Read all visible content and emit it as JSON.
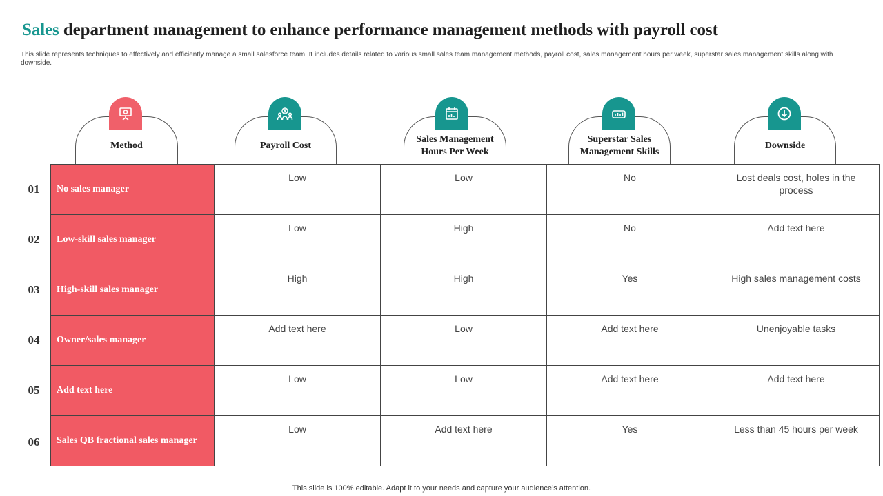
{
  "title": {
    "accent": "Sales",
    "rest": "department management to enhance performance management methods with payroll cost"
  },
  "subtitle": "This slide represents techniques to effectively and efficiently manage a small salesforce team. It includes details related to various small sales team management methods, payroll cost, sales management hours per week, superstar sales management skills along with downside.",
  "columns": [
    {
      "label": "Method",
      "icon": "presentation-board-icon",
      "icon_color": "#f0606a"
    },
    {
      "label": "Payroll Cost",
      "icon": "team-dollar-icon",
      "icon_color": "#17968f"
    },
    {
      "label": "Sales Management Hours Per Week",
      "icon": "calendar-chart-icon",
      "icon_color": "#17968f"
    },
    {
      "label": "Superstar Sales Management Skills",
      "icon": "performance-meter-icon",
      "icon_color": "#17968f"
    },
    {
      "label": "Downside",
      "icon": "down-arrow-circle-icon",
      "icon_color": "#17968f"
    }
  ],
  "rows": [
    {
      "num": "01",
      "method": "No sales manager",
      "payroll": "Low",
      "hours": "Low",
      "skills": "No",
      "downside": "Lost deals cost, holes in the process"
    },
    {
      "num": "02",
      "method": "Low-skill  sales manager",
      "payroll": "Low",
      "hours": "High",
      "skills": "No",
      "downside": "Add text here"
    },
    {
      "num": "03",
      "method": "High-skill  sales manager",
      "payroll": "High",
      "hours": "High",
      "skills": "Yes",
      "downside": "High sales management costs"
    },
    {
      "num": "04",
      "method": "Owner/sales  manager",
      "payroll": "Add text here",
      "hours": "Low",
      "skills": "Add text here",
      "downside": "Unenjoyable  tasks"
    },
    {
      "num": "05",
      "method": "Add  text here",
      "payroll": "Low",
      "hours": "Low",
      "skills": "Add text here",
      "downside": "Add text here"
    },
    {
      "num": "06",
      "method": "Sales QB fractional sales manager",
      "payroll": "Low",
      "hours": "Add text here",
      "skills": "Yes",
      "downside": "Less than 45 hours per week"
    }
  ],
  "footer": "This slide is 100% editable. Adapt it to your needs and capture your audience’s attention.",
  "colors": {
    "accent_teal": "#17968f",
    "accent_red": "#f15a64"
  }
}
